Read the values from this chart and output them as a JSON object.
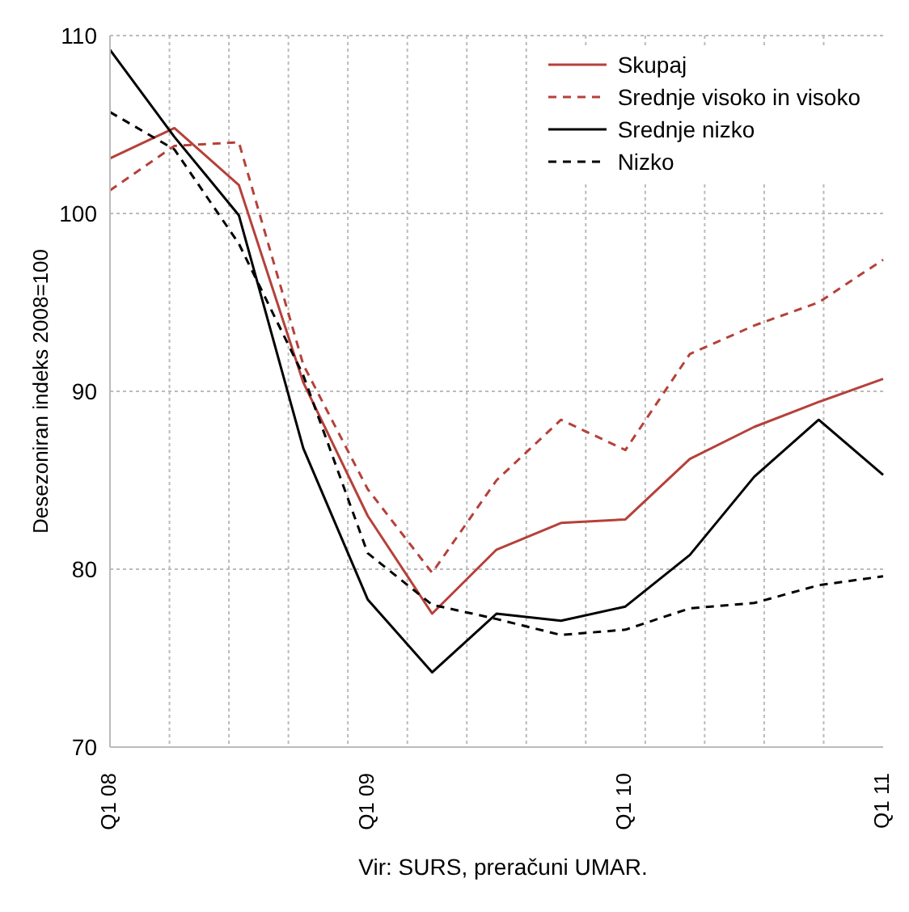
{
  "chart_data": {
    "type": "line",
    "ylabel": "Desezoniran indeks 2008=100",
    "annotations": [
      "Vir: SURS, preračuni UMAR."
    ],
    "categories": [
      "Q1 08",
      null,
      null,
      null,
      "Q1 09",
      null,
      null,
      null,
      "Q1 10",
      null,
      null,
      null,
      "Q1 11"
    ],
    "ylim": [
      70,
      110
    ],
    "yticks": [
      70,
      80,
      90,
      100,
      110
    ],
    "grid": true,
    "legend": "top right",
    "marker": "none",
    "series": [
      {
        "name": "Skupaj",
        "color": "#b5413a",
        "line_style": "solid",
        "values": [
          103.1,
          104.8,
          101.6,
          90.5,
          83.0,
          77.5,
          81.1,
          82.6,
          82.8,
          86.2,
          88.0,
          89.4,
          90.7
        ]
      },
      {
        "name": "Srednje visoko in visoko",
        "color": "#b5413a",
        "line_style": "dashed",
        "values": [
          101.3,
          103.8,
          104.0,
          91.5,
          84.5,
          79.8,
          85.0,
          88.4,
          86.7,
          92.1,
          93.7,
          95.0,
          97.4
        ]
      },
      {
        "name": "Srednje nizko",
        "color": "#000000",
        "line_style": "solid",
        "values": [
          109.2,
          104.3,
          99.9,
          86.8,
          78.3,
          74.2,
          77.5,
          77.1,
          77.9,
          80.8,
          85.2,
          88.4,
          85.3
        ]
      },
      {
        "name": "Nizko",
        "color": "#000000",
        "line_style": "dashed",
        "values": [
          105.7,
          103.6,
          98.3,
          90.9,
          80.9,
          78.0,
          77.2,
          76.3,
          76.6,
          77.8,
          78.1,
          79.1,
          79.6
        ]
      }
    ]
  }
}
